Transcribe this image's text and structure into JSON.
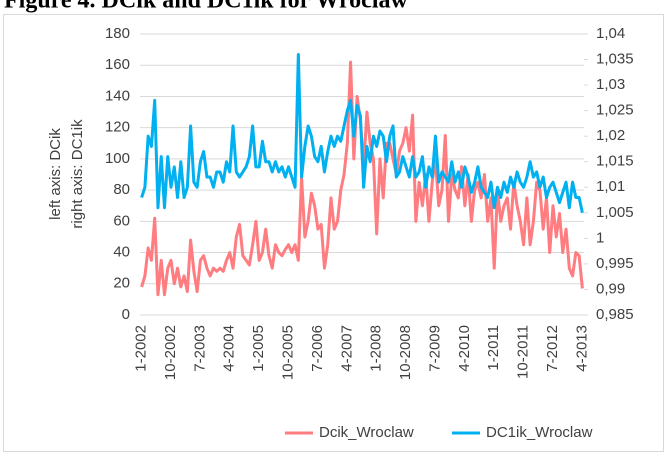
{
  "chart_data": {
    "type": "line",
    "title": "Figure 4. DCik and DC1ik for Wroclaw",
    "y_label_lines": [
      "left axis: DCik",
      "right axis: DC1ik"
    ],
    "categories": [
      "1-2002",
      null,
      null,
      null,
      null,
      null,
      null,
      null,
      null,
      "10-2002",
      null,
      null,
      null,
      null,
      null,
      null,
      null,
      null,
      "7-2003",
      null,
      null,
      null,
      null,
      null,
      null,
      null,
      null,
      "4-2004",
      null,
      null,
      null,
      null,
      null,
      null,
      null,
      null,
      "1-2005",
      null,
      null,
      null,
      null,
      null,
      null,
      null,
      null,
      "10-2005",
      null,
      null,
      null,
      null,
      null,
      null,
      null,
      null,
      "7-2006",
      null,
      null,
      null,
      null,
      null,
      null,
      null,
      null,
      "4-2007",
      null,
      null,
      null,
      null,
      null,
      null,
      null,
      null,
      "1-2008",
      null,
      null,
      null,
      null,
      null,
      null,
      null,
      null,
      "10-2008",
      null,
      null,
      null,
      null,
      null,
      null,
      null,
      null,
      "7-2009",
      null,
      null,
      null,
      null,
      null,
      null,
      null,
      null,
      "4-2010",
      null,
      null,
      null,
      null,
      null,
      null,
      null,
      null,
      "1-2011",
      null,
      null,
      null,
      null,
      null,
      null,
      null,
      null,
      "10-2011",
      null,
      null,
      null,
      null,
      null,
      null,
      null,
      null,
      "7-2012",
      null,
      null,
      null,
      null,
      null,
      null,
      null,
      null,
      "4-2013"
    ],
    "series": [
      {
        "name": "Dcik_Wroclaw",
        "color": "#ff7c80",
        "values": [
          18,
          25,
          43,
          35,
          62,
          13,
          35,
          13,
          30,
          35,
          20,
          30,
          18,
          25,
          15,
          48,
          28,
          15,
          35,
          38,
          30,
          25,
          30,
          28,
          30,
          28,
          35,
          40,
          30,
          50,
          58,
          38,
          35,
          32,
          45,
          60,
          35,
          40,
          55,
          38,
          30,
          45,
          40,
          38,
          42,
          45,
          40,
          45,
          35,
          88,
          50,
          60,
          78,
          70,
          55,
          58,
          30,
          45,
          75,
          55,
          60,
          80,
          90,
          110,
          162,
          100,
          140,
          125,
          95,
          130,
          110,
          100,
          52,
          100,
          75,
          110,
          110,
          100,
          90,
          105,
          110,
          120,
          105,
          128,
          60,
          85,
          70,
          90,
          60,
          85,
          100,
          70,
          80,
          115,
          60,
          90,
          80,
          75,
          95,
          70,
          90,
          60,
          80,
          85,
          75,
          90,
          60,
          75,
          30,
          80,
          60,
          70,
          75,
          55,
          85,
          70,
          60,
          45,
          75,
          45,
          60,
          85,
          80,
          55,
          75,
          40,
          70,
          50,
          65,
          40,
          55,
          30,
          25,
          40,
          38,
          17
        ]
      },
      {
        "name": "DC1ik_Wroclaw",
        "color": "#00b0f0",
        "axis": "y2",
        "values": [
          1.008,
          1.01,
          1.02,
          1.018,
          1.027,
          1.006,
          1.016,
          1.006,
          1.016,
          1.01,
          1.014,
          1.008,
          1.015,
          1.008,
          1.01,
          1.022,
          1.011,
          1.01,
          1.015,
          1.017,
          1.012,
          1.012,
          1.01,
          1.013,
          1.013,
          1.011,
          1.015,
          1.013,
          1.022,
          1.013,
          1.012,
          1.013,
          1.014,
          1.016,
          1.022,
          1.014,
          1.014,
          1.019,
          1.015,
          1.015,
          1.013,
          1.015,
          1.013,
          1.014,
          1.012,
          1.014,
          1.012,
          1.01,
          1.036,
          1.012,
          1.018,
          1.022,
          1.02,
          1.016,
          1.015,
          1.018,
          1.013,
          1.017,
          1.02,
          1.018,
          1.02,
          1.019,
          1.022,
          1.025,
          1.027,
          1.02,
          1.026,
          1.024,
          1.01,
          1.018,
          1.015,
          1.02,
          1.018,
          1.021,
          1.02,
          1.015,
          1.02,
          1.022,
          1.012,
          1.013,
          1.016,
          1.014,
          1.012,
          1.016,
          1.012,
          1.013,
          1.016,
          1.01,
          1.014,
          1.012,
          1.02,
          1.011,
          1.013,
          1.012,
          1.011,
          1.015,
          1.011,
          1.013,
          1.01,
          1.014,
          1.012,
          1.009,
          1.011,
          1.014,
          1.01,
          1.009,
          1.008,
          1.011,
          1.006,
          1.01,
          1.008,
          1.011,
          1.009,
          1.012,
          1.01,
          1.013,
          1.011,
          1.01,
          1.012,
          1.015,
          1.012,
          1.013,
          1.01,
          1.012,
          1.008,
          1.01,
          1.011,
          1.009,
          1.007,
          1.009,
          1.011,
          1.006,
          1.011,
          1.008,
          1.008,
          1.005
        ]
      }
    ],
    "ylim": [
      0,
      180
    ],
    "yticks": [
      0,
      20,
      40,
      60,
      80,
      100,
      120,
      140,
      160,
      180
    ],
    "y2lim": [
      0.985,
      1.04
    ],
    "y2ticks": [
      {
        "value": 0.985,
        "label": "0,985"
      },
      {
        "value": 0.99,
        "label": "0,99"
      },
      {
        "value": 0.995,
        "label": "0,995"
      },
      1,
      {
        "value": 1.005,
        "label": "1,005"
      },
      {
        "value": 1.01,
        "label": "1,01"
      },
      {
        "value": 1.015,
        "label": "1,015"
      },
      {
        "value": 1.02,
        "label": "1,02"
      },
      {
        "value": 1.025,
        "label": "1,025"
      },
      {
        "value": 1.03,
        "label": "1,03"
      },
      {
        "value": 1.035,
        "label": "1,035"
      },
      {
        "value": 1.04,
        "label": "1,04"
      }
    ],
    "grid": true,
    "legend": "bottom"
  }
}
